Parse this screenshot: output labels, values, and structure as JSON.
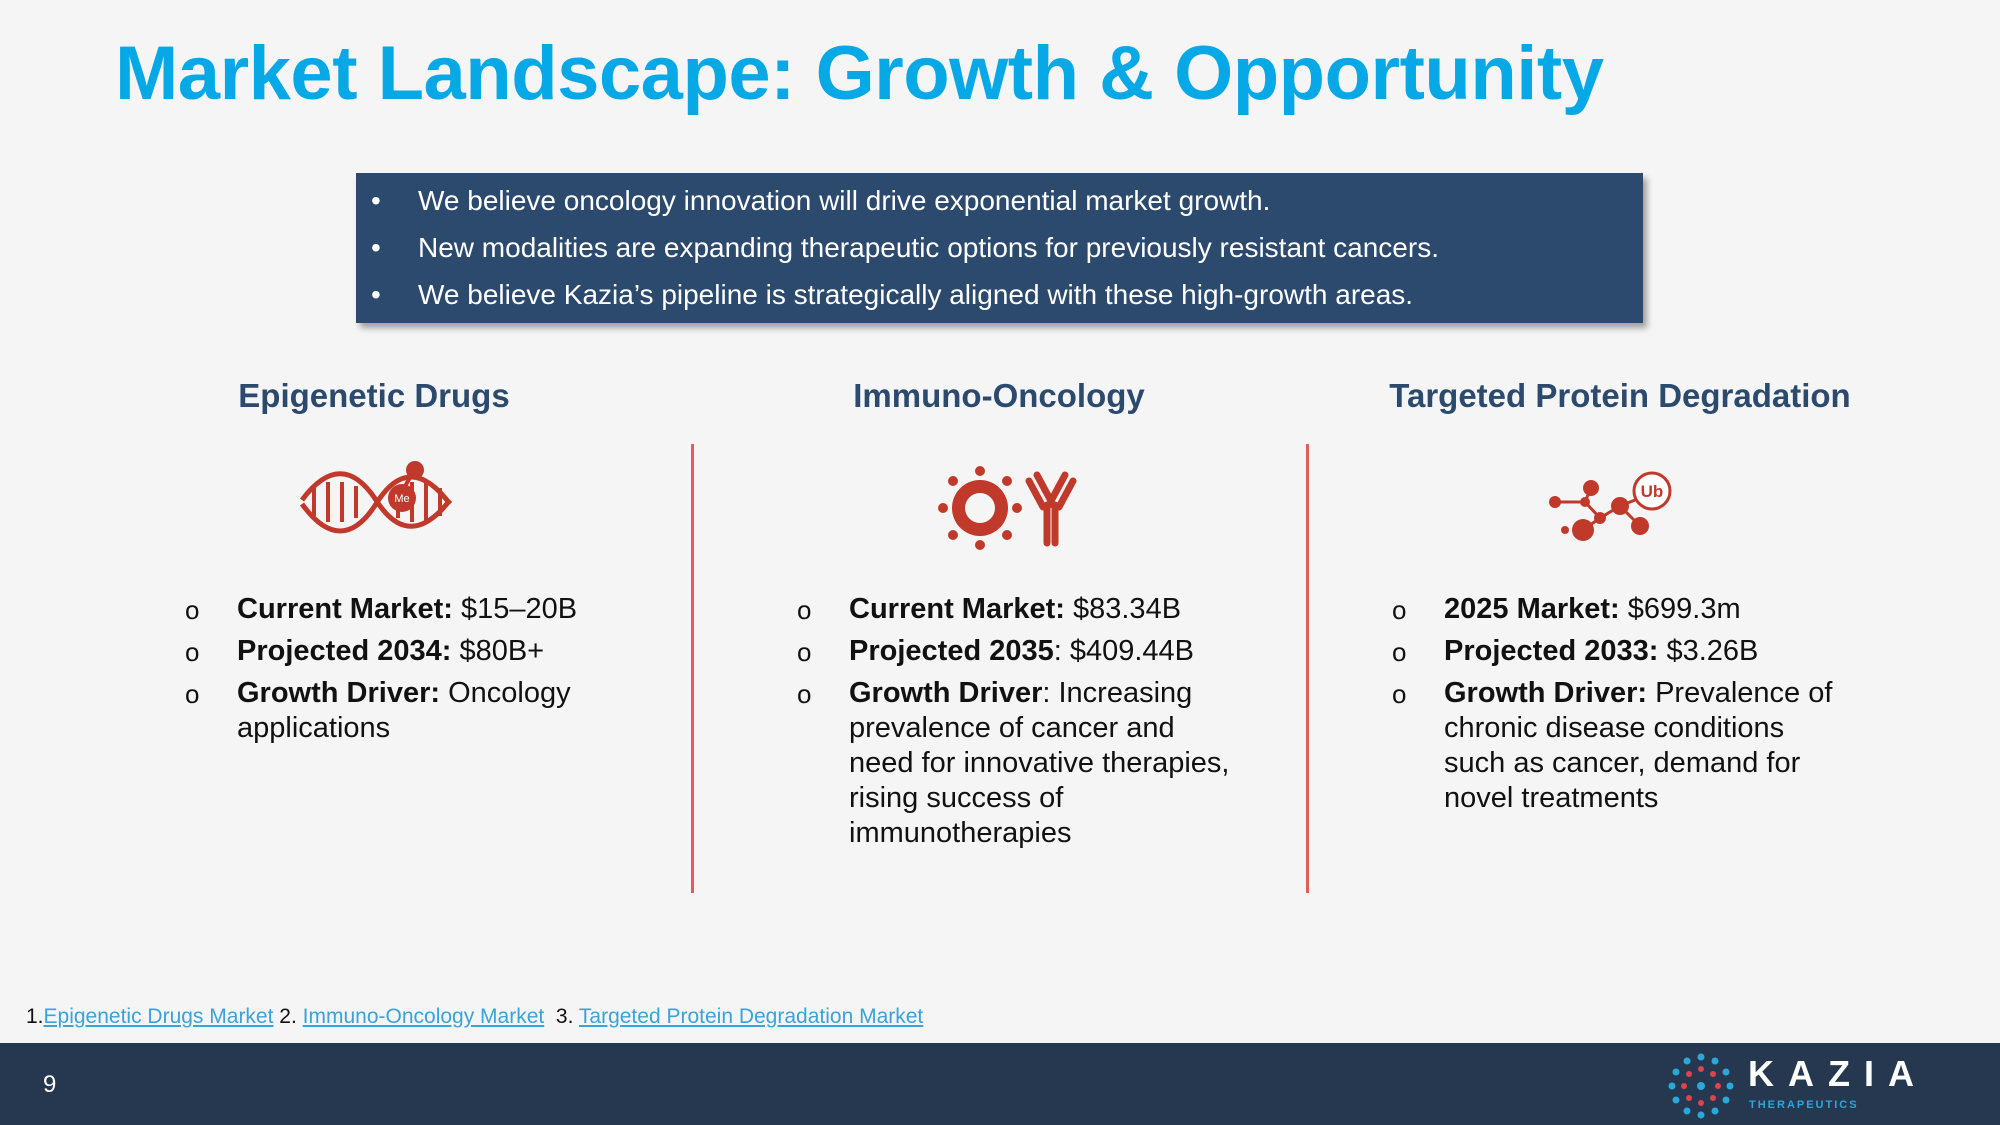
{
  "title": "Market Landscape: Growth & Opportunity",
  "summary": [
    "We believe oncology innovation will drive exponential market growth.",
    "New modalities are expanding therapeutic options for previously resistant cancers.",
    "We believe Kazia’s pipeline is strategically aligned with these high-growth areas."
  ],
  "columns": [
    {
      "heading": "Epigenetic Drugs",
      "icon_label": "Me",
      "items": [
        {
          "label": "Current Market:",
          "text": " $15–20B"
        },
        {
          "label": "Projected 2034:",
          "text": " $80B+"
        },
        {
          "label": "Growth Driver:",
          "text": " Oncology applications"
        }
      ]
    },
    {
      "heading": "Immuno-Oncology",
      "items": [
        {
          "label": "Current Market:",
          "text": " $83.34B"
        },
        {
          "label": "Projected 2035",
          "text": ": $409.44B"
        },
        {
          "label": "Growth Driver",
          "text": ": Increasing prevalence of cancer and need for innovative therapies, rising success of immunotherapies"
        }
      ]
    },
    {
      "heading": "Targeted Protein Degradation",
      "icon_label": "Ub",
      "items": [
        {
          "label": "2025 Market:",
          "text": " $699.3m"
        },
        {
          "label": "Projected 2033:",
          "text": " $3.26B"
        },
        {
          "label": "Growth Driver:",
          "text": " Prevalence of chronic disease conditions such as cancer, demand for novel treatments"
        }
      ]
    }
  ],
  "footnotes": [
    {
      "number": "1.",
      "link": "Epigenetic Drugs Market"
    },
    {
      "number": "2.",
      "link": "Immuno-Oncology Market"
    },
    {
      "number": "3.",
      "link": "Targeted Protein Degradation Market"
    }
  ],
  "footer": {
    "page_number": "9",
    "logo": "KAZIA",
    "logo_sub": "THERAPEUTICS"
  }
}
